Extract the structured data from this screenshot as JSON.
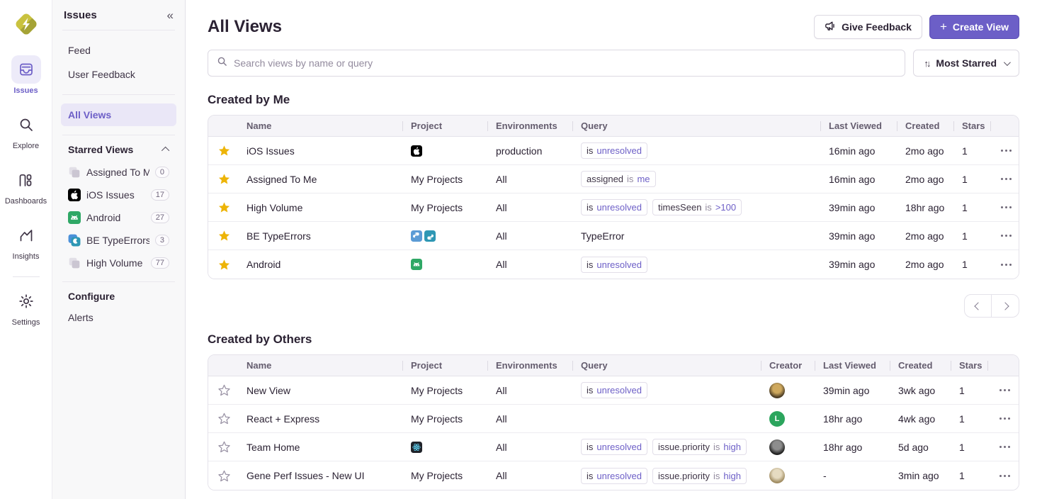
{
  "colors": {
    "accent_purple": "#6C5FC7",
    "star_yellow": "#EDB407",
    "query_value_purple": "#6D5FC7"
  },
  "left_rail": {
    "items": [
      {
        "id": "issues",
        "label": "Issues",
        "active": true
      },
      {
        "id": "explore",
        "label": "Explore",
        "active": false
      },
      {
        "id": "dashboards",
        "label": "Dashboards",
        "active": false
      },
      {
        "id": "insights",
        "label": "Insights",
        "active": false
      },
      {
        "id": "settings",
        "label": "Settings",
        "active": false
      }
    ]
  },
  "sidebar": {
    "title": "Issues",
    "collapse_icon": "«",
    "primary_items": [
      {
        "label": "Feed"
      },
      {
        "label": "User Feedback"
      }
    ],
    "all_views": {
      "label": "All Views",
      "active": true
    },
    "starred_section": {
      "label": "Starred Views"
    },
    "starred_items": [
      {
        "icon": "stack",
        "label": "Assigned To Me",
        "count": "0"
      },
      {
        "icon": "apple",
        "label": "iOS Issues",
        "count": "17"
      },
      {
        "icon": "android",
        "label": "Android",
        "count": "27"
      },
      {
        "icon": "python-pair",
        "label": "BE TypeErrors",
        "count": "3"
      },
      {
        "icon": "stack",
        "label": "High Volume",
        "count": "77"
      }
    ],
    "configure_section": {
      "label": "Configure"
    },
    "configure_items": [
      {
        "label": "Alerts"
      }
    ]
  },
  "header": {
    "title": "All Views",
    "give_feedback_label": "Give Feedback",
    "create_view_label": "Create View"
  },
  "toolbar": {
    "search_placeholder": "Search views by name or query",
    "sort_label": "Most Starred"
  },
  "created_by_me": {
    "heading": "Created by Me",
    "columns": [
      "Name",
      "Project",
      "Environments",
      "Query",
      "Last Viewed",
      "Created",
      "Stars"
    ],
    "rows": [
      {
        "starred": true,
        "name": "iOS Issues",
        "project": {
          "icons": [
            "apple"
          ]
        },
        "environments": "production",
        "query": [
          {
            "tokens": [
              [
                "is",
                "key"
              ],
              [
                "unresolved",
                "val"
              ]
            ]
          }
        ],
        "last_viewed": "16min ago",
        "created": "2mo ago",
        "stars": "1"
      },
      {
        "starred": true,
        "name": "Assigned To Me",
        "project": {
          "label": "My Projects"
        },
        "environments": "All",
        "query": [
          {
            "tokens": [
              [
                "assigned",
                "key"
              ],
              [
                "is",
                "op"
              ],
              [
                "me",
                "val"
              ]
            ]
          }
        ],
        "last_viewed": "16min ago",
        "created": "2mo ago",
        "stars": "1"
      },
      {
        "starred": true,
        "name": "High Volume",
        "project": {
          "label": "My Projects"
        },
        "environments": "All",
        "query": [
          {
            "tokens": [
              [
                "is",
                "key"
              ],
              [
                "unresolved",
                "val"
              ]
            ]
          },
          {
            "tokens": [
              [
                "timesSeen",
                "key"
              ],
              [
                "is",
                "op"
              ],
              [
                ">100",
                "val"
              ]
            ]
          }
        ],
        "last_viewed": "39min ago",
        "created": "18hr ago",
        "stars": "1"
      },
      {
        "starred": true,
        "name": "BE TypeErrors",
        "project": {
          "icons": [
            "python-blue",
            "python-teal"
          ]
        },
        "environments": "All",
        "query": [
          {
            "text": "TypeError"
          }
        ],
        "last_viewed": "39min ago",
        "created": "2mo ago",
        "stars": "1"
      },
      {
        "starred": true,
        "name": "Android",
        "project": {
          "icons": [
            "android"
          ]
        },
        "environments": "All",
        "query": [
          {
            "tokens": [
              [
                "is",
                "key"
              ],
              [
                "unresolved",
                "val"
              ]
            ]
          }
        ],
        "last_viewed": "39min ago",
        "created": "2mo ago",
        "stars": "1"
      }
    ]
  },
  "created_by_others": {
    "heading": "Created by Others",
    "columns": [
      "Name",
      "Project",
      "Environments",
      "Query",
      "Creator",
      "Last Viewed",
      "Created",
      "Stars"
    ],
    "rows": [
      {
        "starred": false,
        "name": "New View",
        "project": {
          "label": "My Projects"
        },
        "environments": "All",
        "query": [
          {
            "tokens": [
              [
                "is",
                "key"
              ],
              [
                "unresolved",
                "val"
              ]
            ]
          }
        ],
        "creator": {
          "kind": "photo",
          "c1": "#cfa95e",
          "c2": "#4a3b24"
        },
        "last_viewed": "39min ago",
        "created": "3wk ago",
        "stars": "1"
      },
      {
        "starred": false,
        "name": "React + Express",
        "project": {
          "label": "My Projects"
        },
        "environments": "All",
        "query": [],
        "creator": {
          "kind": "initial",
          "label": "L",
          "bg": "#2BA55D"
        },
        "last_viewed": "18hr ago",
        "created": "4wk ago",
        "stars": "1"
      },
      {
        "starred": false,
        "name": "Team Home",
        "project": {
          "icons": [
            "react"
          ]
        },
        "environments": "All",
        "query": [
          {
            "tokens": [
              [
                "is",
                "key"
              ],
              [
                "unresolved",
                "val"
              ]
            ]
          },
          {
            "tokens": [
              [
                "issue.priority",
                "key"
              ],
              [
                "is",
                "op"
              ],
              [
                "high",
                "val"
              ]
            ]
          }
        ],
        "creator": {
          "kind": "photo",
          "c1": "#8d8d8d",
          "c2": "#20201f"
        },
        "last_viewed": "18hr ago",
        "created": "5d ago",
        "stars": "1"
      },
      {
        "starred": false,
        "name": "Gene Perf Issues - New UI",
        "project": {
          "label": "My Projects"
        },
        "environments": "All",
        "query": [
          {
            "tokens": [
              [
                "is",
                "key"
              ],
              [
                "unresolved",
                "val"
              ]
            ]
          },
          {
            "tokens": [
              [
                "issue.priority",
                "key"
              ],
              [
                "is",
                "op"
              ],
              [
                "high",
                "val"
              ]
            ]
          }
        ],
        "creator": {
          "kind": "photo",
          "c1": "#e6dbc1",
          "c2": "#a08c61"
        },
        "last_viewed": "-",
        "created": "3min ago",
        "stars": "1"
      }
    ]
  },
  "pagination": {
    "prev": "previous",
    "next": "next"
  }
}
